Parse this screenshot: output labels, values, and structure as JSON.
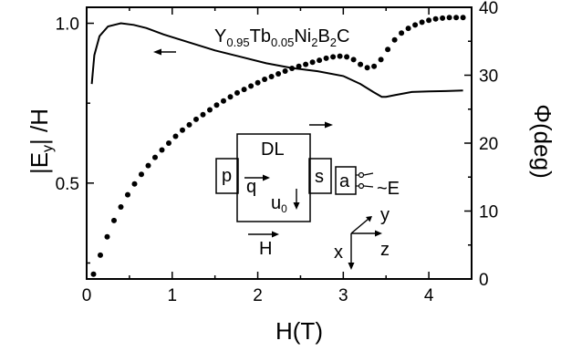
{
  "chart_data": {
    "type": "scatter",
    "title": "Y0.95Tb0.05Ni2B2C",
    "xlabel": "H(T)",
    "ylabel_left": "|Ey| /H",
    "ylabel_right": "Φ(deg)",
    "xlim": [
      0,
      4.5
    ],
    "ylim_left": [
      0.2,
      1.05
    ],
    "ylim_right": [
      0,
      40
    ],
    "x_ticks": [
      "0",
      "1",
      "2",
      "3",
      "4"
    ],
    "y_left_ticks": [
      "0.5",
      "1.0"
    ],
    "y_right_ticks": [
      "0",
      "10",
      "20",
      "30",
      "40"
    ],
    "grid": false,
    "series": [
      {
        "axis": "left",
        "style": "line",
        "x": [
          0.06,
          0.09,
          0.15,
          0.25,
          0.4,
          0.55,
          0.7,
          0.9,
          1.2,
          1.5,
          1.8,
          2.1,
          2.4,
          2.7,
          3.0,
          3.2,
          3.35,
          3.45,
          3.5,
          3.6,
          3.8,
          4.0,
          4.2,
          4.4
        ],
        "y": [
          0.81,
          0.9,
          0.96,
          0.99,
          1.0,
          0.995,
          0.985,
          0.965,
          0.94,
          0.915,
          0.895,
          0.875,
          0.86,
          0.85,
          0.835,
          0.81,
          0.785,
          0.77,
          0.77,
          0.775,
          0.785,
          0.787,
          0.788,
          0.79
        ]
      },
      {
        "axis": "right",
        "style": "dots",
        "x": [
          0.08,
          0.16,
          0.24,
          0.32,
          0.4,
          0.48,
          0.56,
          0.64,
          0.72,
          0.8,
          0.88,
          0.96,
          1.04,
          1.12,
          1.2,
          1.28,
          1.36,
          1.44,
          1.52,
          1.6,
          1.68,
          1.76,
          1.84,
          1.92,
          2.0,
          2.08,
          2.16,
          2.24,
          2.32,
          2.4,
          2.48,
          2.56,
          2.64,
          2.72,
          2.8,
          2.88,
          2.96,
          3.04,
          3.12,
          3.2,
          3.28,
          3.36,
          3.44,
          3.52,
          3.6,
          3.68,
          3.76,
          3.84,
          3.92,
          4.0,
          4.08,
          4.16,
          4.24,
          4.32,
          4.4
        ],
        "y": [
          0.7,
          3.5,
          6.2,
          8.6,
          10.6,
          12.4,
          14.0,
          15.4,
          16.7,
          17.9,
          19.0,
          20.0,
          21.0,
          21.9,
          22.7,
          23.5,
          24.2,
          24.9,
          25.6,
          26.2,
          26.8,
          27.4,
          27.9,
          28.4,
          28.9,
          29.4,
          29.8,
          30.2,
          30.6,
          31.0,
          31.3,
          31.6,
          31.9,
          32.2,
          32.5,
          32.7,
          32.8,
          32.7,
          32.3,
          31.6,
          31.1,
          31.3,
          32.3,
          33.8,
          35.2,
          36.2,
          36.9,
          37.4,
          37.8,
          38.1,
          38.3,
          38.4,
          38.5,
          38.5,
          38.5
        ]
      }
    ],
    "annotations": {
      "formula": {
        "base": [
          "Y",
          "Tb",
          "Ni",
          "B",
          "C"
        ],
        "subs": [
          "0.95",
          "0.05",
          "2",
          "2",
          ""
        ]
      },
      "arrow_left_to_curve": "←",
      "arrow_right_to_dots": "→"
    }
  },
  "inset": {
    "dl": "DL",
    "p": "p",
    "q": "q",
    "u": "u",
    "u_sub": "0",
    "s": "s",
    "a": "a",
    "e": "~E",
    "h": "H",
    "x": "x",
    "y": "y",
    "z": "z"
  }
}
